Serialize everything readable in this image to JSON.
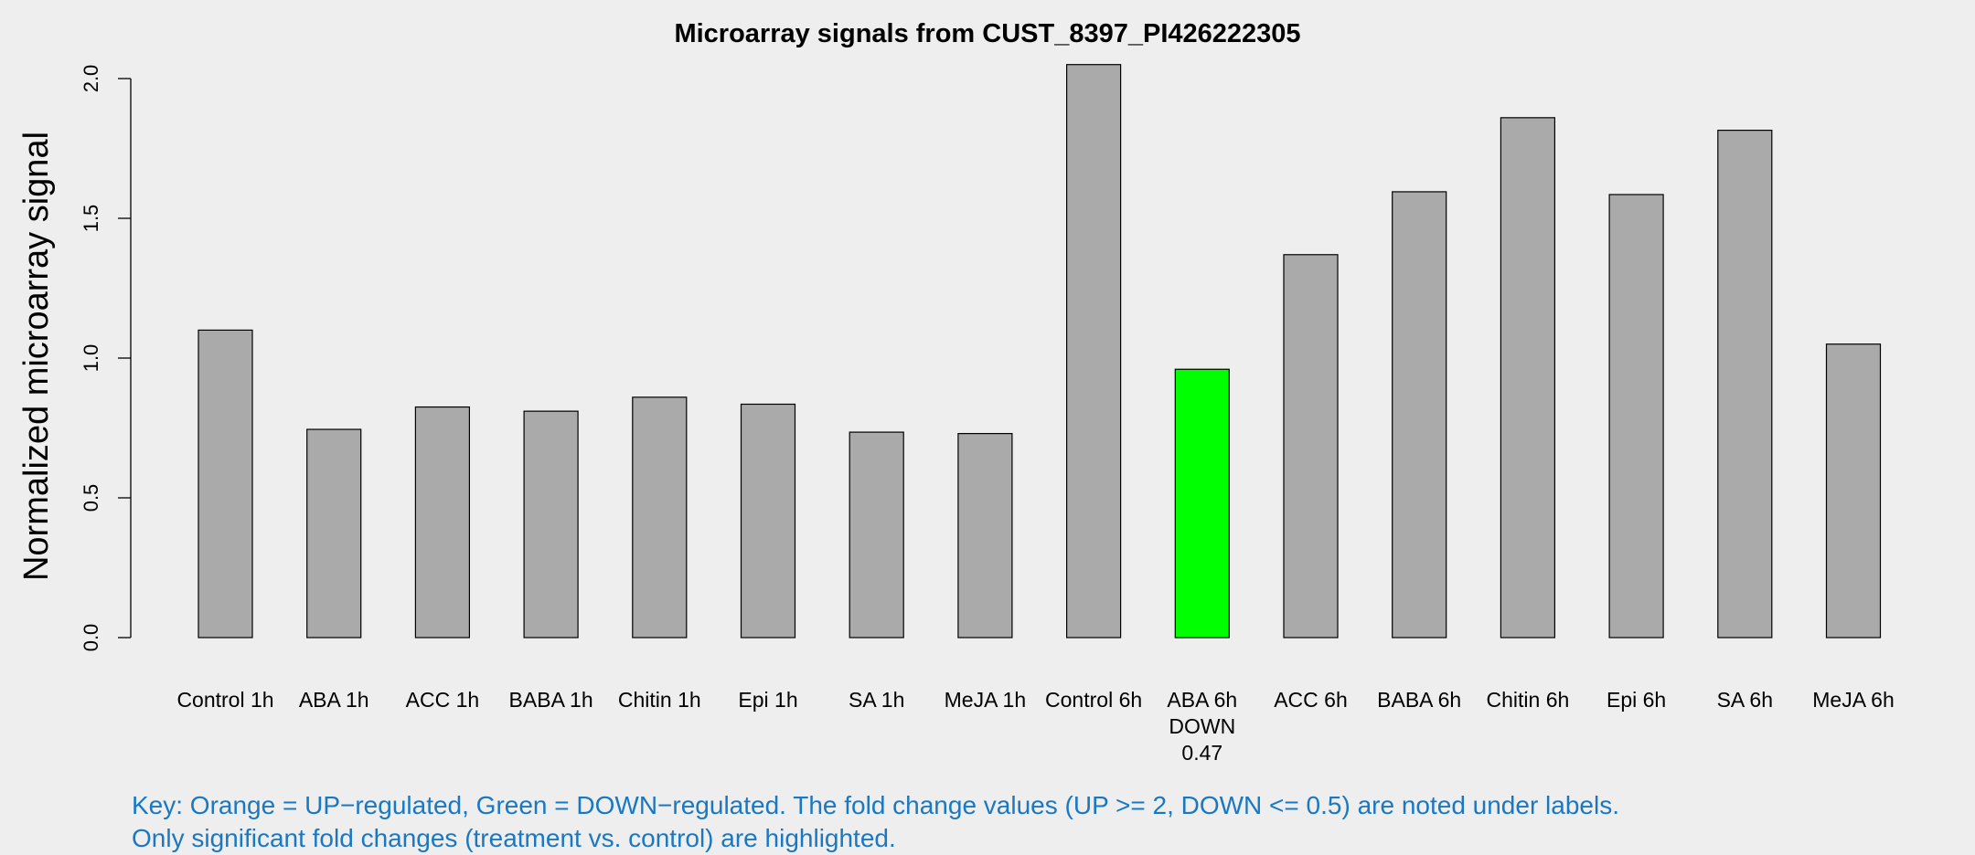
{
  "chart_data": {
    "type": "bar",
    "title": "Microarray signals from CUST_8397_PI426222305",
    "xlabel": "",
    "ylabel": "Normalized microarray signal",
    "ylim": [
      0,
      2.0
    ],
    "yticks": [
      "0.0",
      "0.5",
      "1.0",
      "1.5",
      "2.0"
    ],
    "grid": false,
    "categories": [
      "Control 1h",
      "ABA 1h",
      "ACC 1h",
      "BABA 1h",
      "Chitin 1h",
      "Epi 1h",
      "SA 1h",
      "MeJA 1h",
      "Control 6h",
      "ABA 6h",
      "ACC 6h",
      "BABA 6h",
      "Chitin 6h",
      "Epi 6h",
      "SA 6h",
      "MeJA 6h"
    ],
    "values": [
      1.1,
      0.745,
      0.825,
      0.81,
      0.86,
      0.835,
      0.735,
      0.73,
      2.05,
      0.96,
      1.37,
      1.595,
      1.86,
      1.585,
      1.815,
      1.05
    ],
    "annotations": [
      {
        "category": "ABA 6h",
        "regulation": "DOWN",
        "fold_change": "0.47"
      }
    ],
    "colors": {
      "default": "#aaaaaa",
      "down": "#00ff00",
      "up": "#ffa500",
      "outline": "#000000"
    },
    "bar_colors": [
      "default",
      "default",
      "default",
      "default",
      "default",
      "default",
      "default",
      "default",
      "default",
      "down",
      "default",
      "default",
      "default",
      "default",
      "default",
      "default"
    ]
  },
  "key": {
    "line1": "Key: Orange = UP−regulated, Green = DOWN−regulated. The fold change values (UP >= 2, DOWN <= 0.5) are noted under labels.",
    "line2": "Only significant fold changes (treatment vs. control) are highlighted."
  }
}
